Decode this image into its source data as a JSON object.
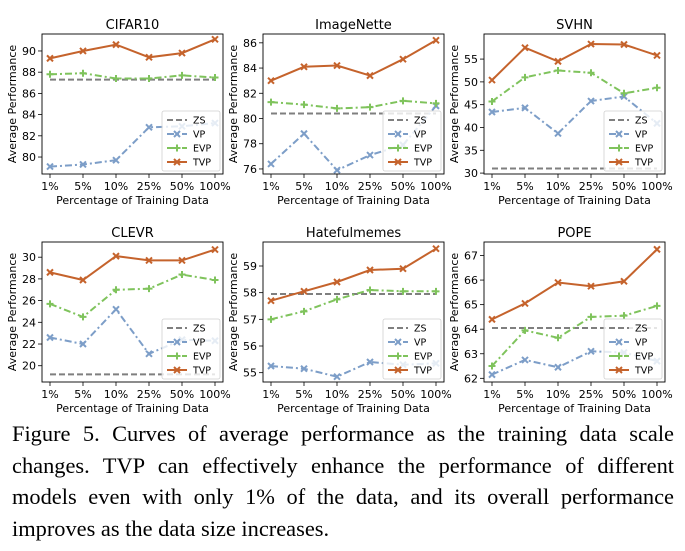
{
  "chart_data": [
    {
      "type": "line",
      "title": "CIFAR10",
      "xlabel": "Percentage of Training Data",
      "ylabel": "Average Performance",
      "categories": [
        "1%",
        "5%",
        "10%",
        "25%",
        "50%",
        "100%"
      ],
      "ylim": [
        78.4,
        91.6
      ],
      "yticks": [
        80,
        82,
        84,
        86,
        88,
        90
      ],
      "legend_position": "lower-right",
      "series": [
        {
          "name": "ZS",
          "values": [
            87.3,
            87.3,
            87.3,
            87.3,
            87.3,
            87.3
          ],
          "color": "#7f7f7f",
          "dash": "dashed",
          "marker": "none"
        },
        {
          "name": "VP",
          "values": [
            79.1,
            79.3,
            79.7,
            82.8,
            82.9,
            83.2
          ],
          "color": "#7d9ec8",
          "dash": "dashdot",
          "marker": "x"
        },
        {
          "name": "EVP",
          "values": [
            87.8,
            87.9,
            87.4,
            87.4,
            87.7,
            87.5
          ],
          "color": "#7fc35c",
          "dash": "dashdot",
          "marker": "plus"
        },
        {
          "name": "TVP",
          "values": [
            89.3,
            90.0,
            90.6,
            89.4,
            89.8,
            91.1
          ],
          "color": "#c5632c",
          "dash": "solid",
          "marker": "x"
        }
      ]
    },
    {
      "type": "line",
      "title": "ImageNette",
      "xlabel": "Percentage of Training Data",
      "ylabel": "Average Performance",
      "categories": [
        "1%",
        "5%",
        "10%",
        "25%",
        "50%",
        "100%"
      ],
      "ylim": [
        75.6,
        86.7
      ],
      "yticks": [
        76,
        78,
        80,
        82,
        84,
        86
      ],
      "legend_position": "lower-right",
      "series": [
        {
          "name": "ZS",
          "values": [
            80.4,
            80.4,
            80.4,
            80.4,
            80.4,
            80.4
          ],
          "color": "#7f7f7f",
          "dash": "dashed",
          "marker": "none"
        },
        {
          "name": "VP",
          "values": [
            76.4,
            78.8,
            75.9,
            77.1,
            77.9,
            81.0
          ],
          "color": "#7d9ec8",
          "dash": "dashdot",
          "marker": "x"
        },
        {
          "name": "EVP",
          "values": [
            81.3,
            81.1,
            80.8,
            80.9,
            81.4,
            81.2
          ],
          "color": "#7fc35c",
          "dash": "dashdot",
          "marker": "plus"
        },
        {
          "name": "TVP",
          "values": [
            83.0,
            84.1,
            84.2,
            83.4,
            84.7,
            86.2
          ],
          "color": "#c5632c",
          "dash": "solid",
          "marker": "x"
        }
      ]
    },
    {
      "type": "line",
      "title": "SVHN",
      "xlabel": "Percentage of Training Data",
      "ylabel": "Average Performance",
      "categories": [
        "1%",
        "5%",
        "10%",
        "25%",
        "50%",
        "100%"
      ],
      "ylim": [
        29.8,
        60.5
      ],
      "yticks": [
        30,
        35,
        40,
        45,
        50,
        55
      ],
      "legend_position": "lower-right",
      "series": [
        {
          "name": "ZS",
          "values": [
            31.0,
            31.0,
            31.0,
            31.0,
            31.0,
            31.0
          ],
          "color": "#7f7f7f",
          "dash": "dashed",
          "marker": "none"
        },
        {
          "name": "VP",
          "values": [
            43.4,
            44.3,
            38.7,
            45.8,
            46.8,
            40.9
          ],
          "color": "#7d9ec8",
          "dash": "dashdot",
          "marker": "x"
        },
        {
          "name": "EVP",
          "values": [
            45.7,
            51.0,
            52.5,
            52.0,
            47.5,
            48.7
          ],
          "color": "#7fc35c",
          "dash": "dashdot",
          "marker": "plus"
        },
        {
          "name": "TVP",
          "values": [
            50.4,
            57.5,
            54.5,
            58.3,
            58.2,
            55.8
          ],
          "color": "#c5632c",
          "dash": "solid",
          "marker": "x"
        }
      ]
    },
    {
      "type": "line",
      "title": "CLEVR",
      "xlabel": "Percentage of Training Data",
      "ylabel": "Average Performance",
      "categories": [
        "1%",
        "5%",
        "10%",
        "25%",
        "50%",
        "100%"
      ],
      "ylim": [
        18.5,
        31.4
      ],
      "yticks": [
        20,
        22,
        24,
        26,
        28,
        30
      ],
      "legend_position": "lower-right",
      "series": [
        {
          "name": "ZS",
          "values": [
            19.2,
            19.2,
            19.2,
            19.2,
            19.2,
            19.2
          ],
          "color": "#7f7f7f",
          "dash": "dashed",
          "marker": "none"
        },
        {
          "name": "VP",
          "values": [
            22.6,
            22.0,
            25.2,
            21.1,
            22.4,
            22.3
          ],
          "color": "#7d9ec8",
          "dash": "dashdot",
          "marker": "x"
        },
        {
          "name": "EVP",
          "values": [
            25.7,
            24.5,
            27.0,
            27.1,
            28.4,
            27.9
          ],
          "color": "#7fc35c",
          "dash": "dashdot",
          "marker": "plus"
        },
        {
          "name": "TVP",
          "values": [
            28.6,
            27.9,
            30.1,
            29.7,
            29.7,
            30.7
          ],
          "color": "#c5632c",
          "dash": "solid",
          "marker": "x"
        }
      ]
    },
    {
      "type": "line",
      "title": "Hatefulmemes",
      "xlabel": "Percentage of Training Data",
      "ylabel": "Average Performance",
      "categories": [
        "1%",
        "5%",
        "10%",
        "25%",
        "50%",
        "100%"
      ],
      "ylim": [
        54.65,
        59.9
      ],
      "yticks": [
        55,
        56,
        57,
        58,
        59
      ],
      "legend_position": "lower-right",
      "series": [
        {
          "name": "ZS",
          "values": [
            57.95,
            57.95,
            57.95,
            57.95,
            57.95,
            57.95
          ],
          "color": "#7f7f7f",
          "dash": "dashed",
          "marker": "none"
        },
        {
          "name": "VP",
          "values": [
            55.25,
            55.15,
            54.85,
            55.4,
            55.3,
            55.35
          ],
          "color": "#7d9ec8",
          "dash": "dashdot",
          "marker": "x"
        },
        {
          "name": "EVP",
          "values": [
            57.0,
            57.3,
            57.75,
            58.1,
            58.05,
            58.05
          ],
          "color": "#7fc35c",
          "dash": "dashdot",
          "marker": "plus"
        },
        {
          "name": "TVP",
          "values": [
            57.7,
            58.05,
            58.4,
            58.85,
            58.9,
            59.65
          ],
          "color": "#c5632c",
          "dash": "solid",
          "marker": "x"
        }
      ]
    },
    {
      "type": "line",
      "title": "POPE",
      "xlabel": "Percentage of Training Data",
      "ylabel": "Average Performance",
      "categories": [
        "1%",
        "5%",
        "10%",
        "25%",
        "50%",
        "100%"
      ],
      "ylim": [
        61.85,
        67.55
      ],
      "yticks": [
        62,
        63,
        64,
        65,
        66,
        67
      ],
      "legend_position": "lower-right",
      "series": [
        {
          "name": "ZS",
          "values": [
            64.05,
            64.05,
            64.05,
            64.05,
            64.05,
            64.05
          ],
          "color": "#7f7f7f",
          "dash": "dashed",
          "marker": "none"
        },
        {
          "name": "VP",
          "values": [
            62.15,
            62.75,
            62.45,
            63.1,
            63.05,
            62.7
          ],
          "color": "#7d9ec8",
          "dash": "dashdot",
          "marker": "x"
        },
        {
          "name": "EVP",
          "values": [
            62.5,
            63.95,
            63.65,
            64.5,
            64.55,
            64.95
          ],
          "color": "#7fc35c",
          "dash": "dashdot",
          "marker": "plus"
        },
        {
          "name": "TVP",
          "values": [
            64.4,
            65.05,
            65.9,
            65.75,
            65.95,
            67.25
          ],
          "color": "#c5632c",
          "dash": "solid",
          "marker": "x"
        }
      ]
    }
  ],
  "caption": "Figure 5. Curves of average performance as the training data scale changes. TVP can effectively enhance the performance of different models even with only 1% of the data, and its overall performance improves as the data size increases."
}
